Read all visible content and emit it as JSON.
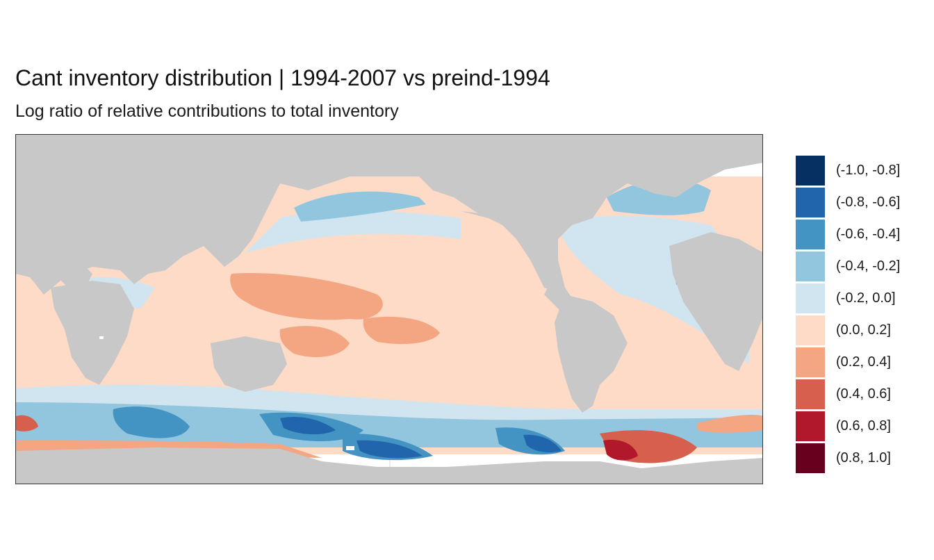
{
  "title": "Cant inventory distribution | 1994-2007 vs preind-1994",
  "subtitle": "Log ratio of relative contributions to total inventory",
  "map": {
    "land_color": "#c8c8c8",
    "background_color": "#ffffff"
  },
  "legend": {
    "items": [
      {
        "label": "(-1.0, -0.8]",
        "color": "#053061"
      },
      {
        "label": "(-0.8, -0.6]",
        "color": "#2166ac"
      },
      {
        "label": "(-0.6, -0.4]",
        "color": "#4393c3"
      },
      {
        "label": "(-0.4, -0.2]",
        "color": "#92c5de"
      },
      {
        "label": "(-0.2, 0.0]",
        "color": "#d1e5f0"
      },
      {
        "label": "(0.0, 0.2]",
        "color": "#fddbc7"
      },
      {
        "label": "(0.2, 0.4]",
        "color": "#f4a582"
      },
      {
        "label": "(0.4, 0.6]",
        "color": "#d6604d"
      },
      {
        "label": "(0.6, 0.8]",
        "color": "#b2182b"
      },
      {
        "label": "(0.8, 1.0]",
        "color": "#67001f"
      }
    ]
  }
}
